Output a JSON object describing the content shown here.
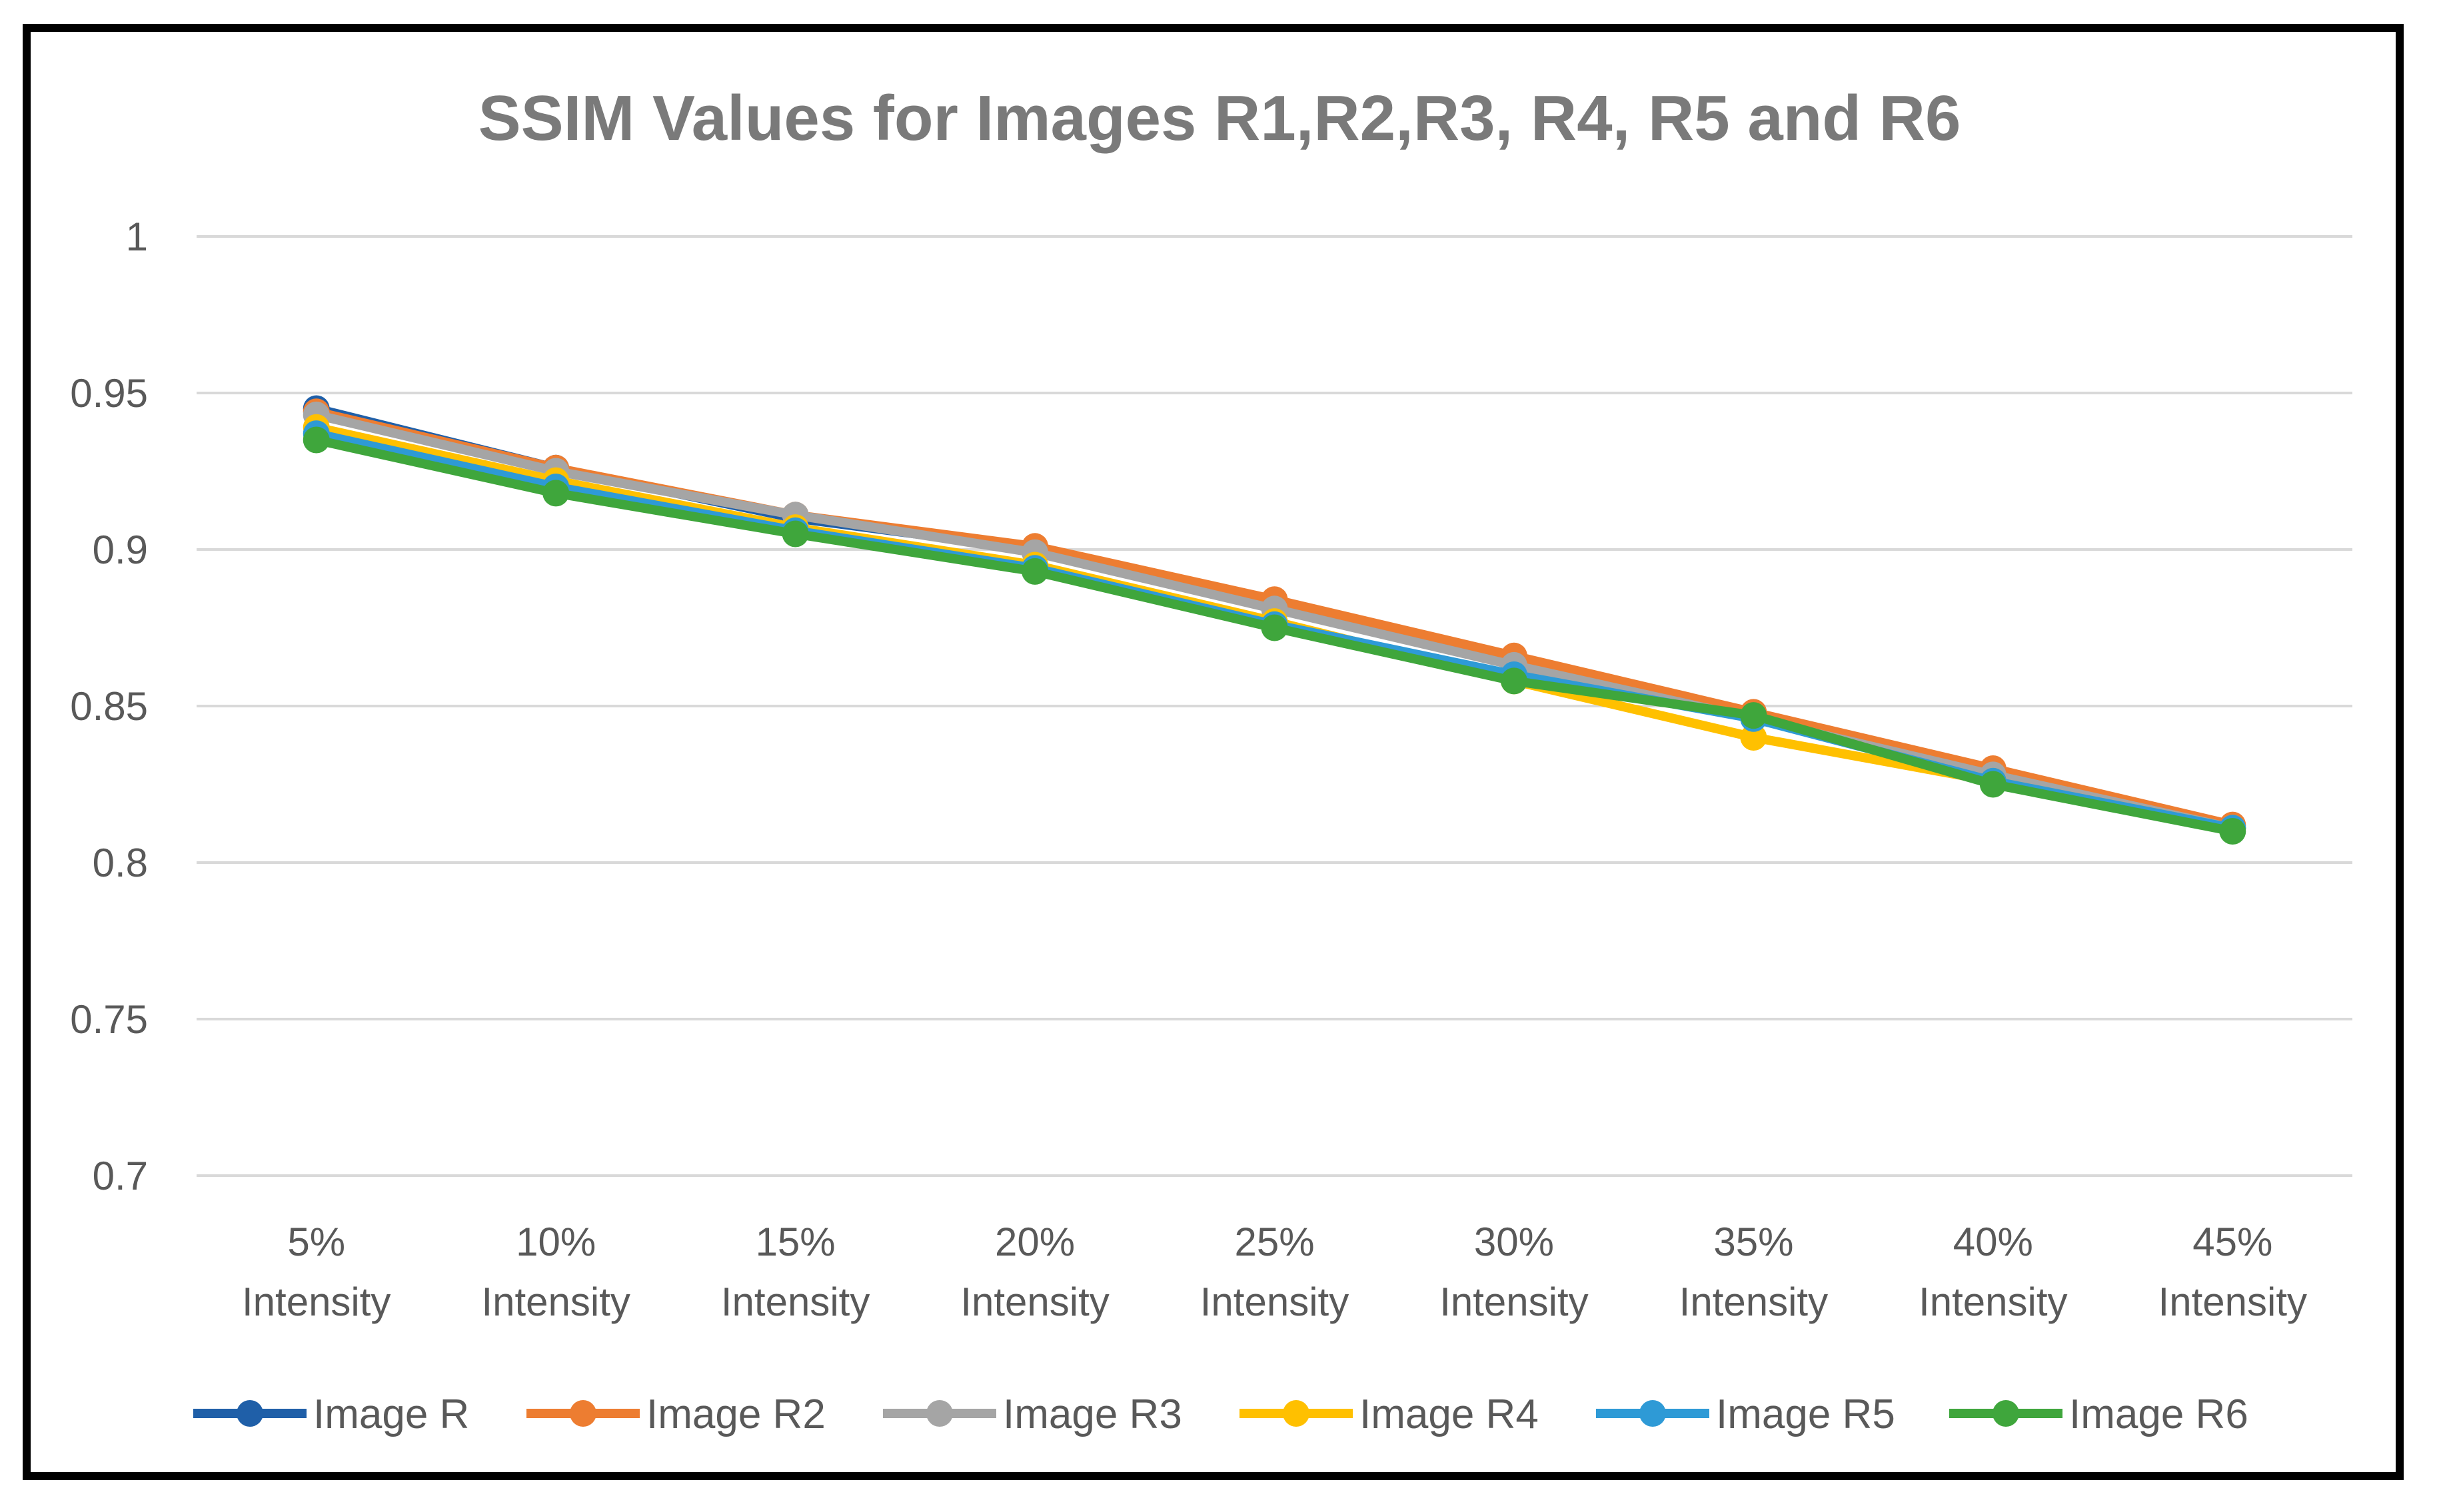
{
  "chart_data": {
    "type": "line",
    "title": "SSIM Values for Images R1,R2,R3, R4, R5 and R6",
    "xlabel": "",
    "ylabel": "",
    "ylim": [
      0.7,
      1
    ],
    "yticks": [
      "0.7",
      "0.75",
      "0.8",
      "0.85",
      "0.9",
      "0.95",
      "1"
    ],
    "categories": [
      [
        "5%",
        "Intensity"
      ],
      [
        "10%",
        "Intensity"
      ],
      [
        "15%",
        "Intensity"
      ],
      [
        "20%",
        "Intensity"
      ],
      [
        "25%",
        "Intensity"
      ],
      [
        "30%",
        "Intensity"
      ],
      [
        "35%",
        "Intensity"
      ],
      [
        "40%",
        "Intensity"
      ],
      [
        "45%",
        "Intensity"
      ]
    ],
    "grid": true,
    "legend_position": "bottom",
    "series": [
      {
        "name": "Image R",
        "color": "#1f5fa8",
        "values": [
          0.945,
          0.926,
          0.91,
          0.9,
          0.882,
          0.864,
          0.847,
          0.829,
          0.811
        ]
      },
      {
        "name": "Image R2",
        "color": "#ed7d31",
        "values": [
          0.944,
          0.926,
          0.911,
          0.901,
          0.884,
          0.866,
          0.848,
          0.83,
          0.812
        ]
      },
      {
        "name": "Image R3",
        "color": "#a5a5a5",
        "values": [
          0.943,
          0.925,
          0.911,
          0.899,
          0.881,
          0.863,
          0.846,
          0.828,
          0.811
        ]
      },
      {
        "name": "Image R4",
        "color": "#ffc000",
        "values": [
          0.939,
          0.922,
          0.907,
          0.895,
          0.877,
          0.858,
          0.84,
          0.826,
          0.811
        ]
      },
      {
        "name": "Image R5",
        "color": "#2e9ad6",
        "values": [
          0.937,
          0.92,
          0.906,
          0.894,
          0.876,
          0.86,
          0.846,
          0.826,
          0.811
        ]
      },
      {
        "name": "Image R6",
        "color": "#3fa63c",
        "values": [
          0.935,
          0.918,
          0.905,
          0.893,
          0.875,
          0.858,
          0.847,
          0.825,
          0.81
        ]
      }
    ]
  }
}
